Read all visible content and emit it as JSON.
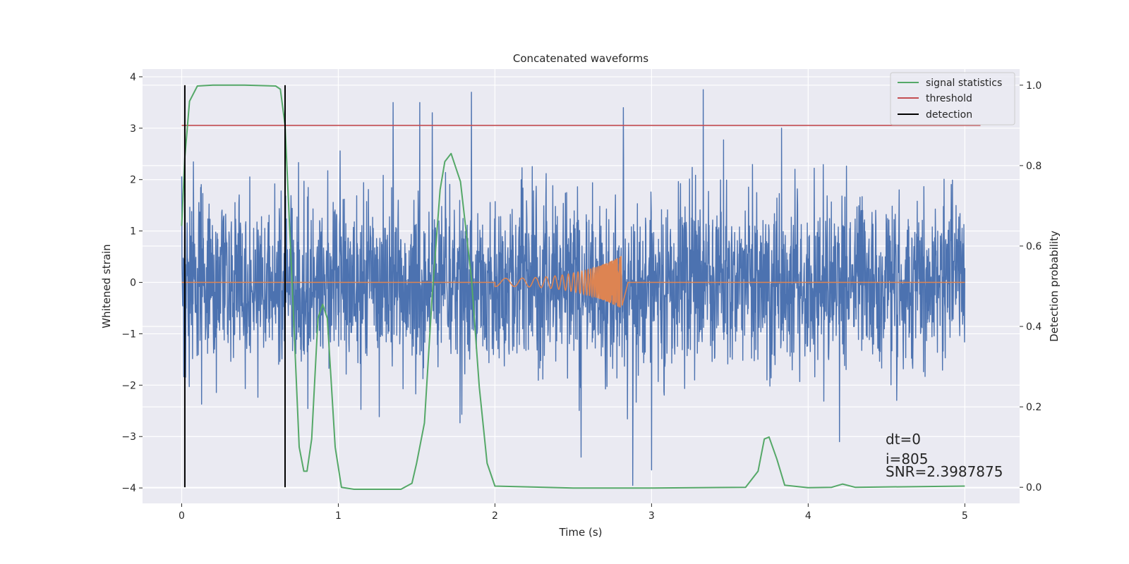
{
  "chart_data": {
    "type": "line",
    "title": "Concatenated waveforms",
    "xlabel": "Time (s)",
    "ylabel_left": "Whitened strain",
    "ylabel_right": "Detection probability",
    "xlim": [
      -0.25,
      5.35
    ],
    "ylim_left": [
      -4.3,
      4.15
    ],
    "ylim_right": [
      -0.04,
      1.04
    ],
    "x_ticks": [
      0,
      1,
      2,
      3,
      4,
      5
    ],
    "x_tick_labels": [
      "0",
      "1",
      "2",
      "3",
      "4",
      "5"
    ],
    "y_left_ticks": [
      -4,
      -3,
      -2,
      -1,
      0,
      1,
      2,
      3,
      4
    ],
    "y_left_tick_labels": [
      "−4",
      "−3",
      "−2",
      "−1",
      "0",
      "1",
      "2",
      "3",
      "4"
    ],
    "y_right_ticks": [
      0.0,
      0.2,
      0.4,
      0.6,
      0.8,
      1.0
    ],
    "y_right_tick_labels": [
      "0.0",
      "0.2",
      "0.4",
      "0.6",
      "0.8",
      "1.0"
    ],
    "grid": true,
    "legend_position": "top-right",
    "legend": [
      {
        "label": "signal statistics",
        "color": "#55a868"
      },
      {
        "label": "threshold",
        "color": "#c44e52"
      },
      {
        "label": "detection",
        "color": "#000000"
      }
    ],
    "series": [
      {
        "key": "strain",
        "axis": "left",
        "color": "#4c72b0",
        "x_range": [
          0,
          5
        ],
        "envelope": {
          "x": [
            0,
            0.5,
            1,
            1.5,
            2,
            2.5,
            3,
            3.5,
            4,
            4.5,
            5
          ],
          "upper": [
            2.3,
            2.6,
            2.9,
            3.4,
            3.0,
            2.6,
            3.1,
            3.3,
            3.0,
            2.6,
            2.3
          ],
          "lower": [
            -2.5,
            -2.7,
            -2.3,
            -2.9,
            -2.6,
            -2.4,
            -3.6,
            -2.9,
            -3.0,
            -3.1,
            -2.7
          ]
        },
        "peaks": [
          {
            "x": 1.35,
            "y": 3.5
          },
          {
            "x": 1.52,
            "y": 3.5
          },
          {
            "x": 1.6,
            "y": 3.3
          },
          {
            "x": 1.85,
            "y": 3.7
          },
          {
            "x": 2.82,
            "y": 3.4
          },
          {
            "x": 3.33,
            "y": 3.75
          },
          {
            "x": 3.83,
            "y": 3.0
          },
          {
            "x": 2.88,
            "y": -3.95
          },
          {
            "x": 3.0,
            "y": -3.65
          },
          {
            "x": 2.55,
            "y": -3.4
          },
          {
            "x": 4.2,
            "y": -3.1
          }
        ]
      },
      {
        "key": "waveform",
        "axis": "left",
        "color": "#dd8452",
        "chirp": {
          "x_start": 2.0,
          "x_merger": 2.8,
          "x_end": 2.85,
          "amp_start": 0.08,
          "amp_peak": 0.5,
          "amp_dip": -0.45
        }
      },
      {
        "key": "statistics",
        "name": "signal statistics",
        "axis": "right",
        "color": "#55a868",
        "x": [
          0.0,
          0.02,
          0.05,
          0.1,
          0.2,
          0.4,
          0.6,
          0.63,
          0.66,
          0.7,
          0.75,
          0.78,
          0.8,
          0.83,
          0.87,
          0.9,
          0.93,
          0.98,
          1.02,
          1.1,
          1.4,
          1.47,
          1.5,
          1.55,
          1.6,
          1.65,
          1.68,
          1.72,
          1.78,
          1.85,
          1.9,
          1.95,
          2.0,
          2.5,
          3.0,
          3.6,
          3.68,
          3.72,
          3.75,
          3.8,
          3.85,
          4.0,
          4.15,
          4.22,
          4.3,
          5.0
        ],
        "y": [
          0.65,
          0.82,
          0.96,
          0.998,
          1.0,
          1.0,
          0.998,
          0.99,
          0.9,
          0.55,
          0.1,
          0.04,
          0.04,
          0.12,
          0.42,
          0.455,
          0.42,
          0.1,
          0.0,
          -0.005,
          -0.005,
          0.01,
          0.06,
          0.16,
          0.48,
          0.74,
          0.81,
          0.83,
          0.76,
          0.52,
          0.25,
          0.06,
          0.003,
          -0.002,
          -0.002,
          0.0,
          0.04,
          0.12,
          0.125,
          0.07,
          0.005,
          -0.001,
          0.0,
          0.008,
          0.0,
          0.003
        ]
      },
      {
        "key": "threshold",
        "name": "threshold",
        "axis": "right",
        "color": "#c44e52",
        "x": [
          0,
          5.1
        ],
        "y": [
          0.9,
          0.9
        ]
      }
    ],
    "detections": {
      "name": "detection",
      "color": "#000000",
      "x": [
        0.02,
        0.66
      ],
      "ymin": 0.0,
      "ymax": 1.0
    },
    "annotations": [
      "dt=0",
      "i=805",
      "SNR=2.3987875"
    ]
  }
}
